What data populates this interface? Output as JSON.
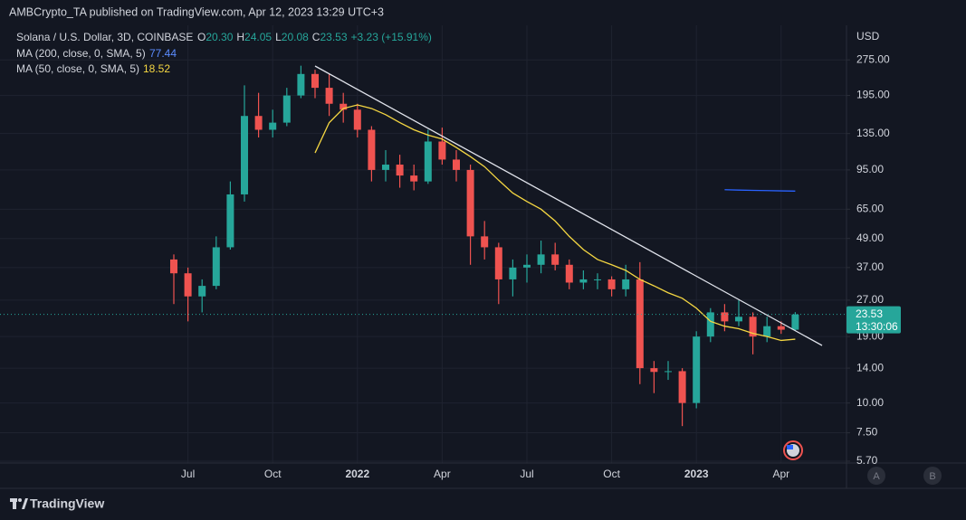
{
  "header": "AMBCrypto_TA published on TradingView.com, Apr 12, 2023 13:29 UTC+3",
  "footer": "TradingView",
  "chart_data": {
    "type": "candlestick",
    "symbol": "Solana / U.S. Dollar, 3D, COINBASE",
    "legend": {
      "open_label": "O",
      "open": "20.30",
      "high_label": "H",
      "high": "24.05",
      "low_label": "L",
      "low": "20.08",
      "close_label": "C",
      "close": "23.53",
      "change": "+3.23 (+15.91%)"
    },
    "currency": "USD",
    "log_scale": true,
    "grid": true,
    "up_color": "#26a69a",
    "down_color": "#ef5350",
    "candles": [
      {
        "open": 40,
        "high": 42,
        "low": 26,
        "close": 35
      },
      {
        "open": 35,
        "high": 37,
        "low": 22,
        "close": 28
      },
      {
        "open": 28,
        "high": 33,
        "low": 24,
        "close": 31
      },
      {
        "open": 31,
        "high": 50,
        "low": 30,
        "close": 45
      },
      {
        "open": 45,
        "high": 85,
        "low": 44,
        "close": 75
      },
      {
        "open": 75,
        "high": 215,
        "low": 70,
        "close": 160
      },
      {
        "open": 160,
        "high": 200,
        "low": 130,
        "close": 140
      },
      {
        "open": 140,
        "high": 170,
        "low": 130,
        "close": 150
      },
      {
        "open": 150,
        "high": 210,
        "low": 145,
        "close": 195
      },
      {
        "open": 195,
        "high": 260,
        "low": 190,
        "close": 240
      },
      {
        "open": 240,
        "high": 250,
        "low": 190,
        "close": 210
      },
      {
        "open": 210,
        "high": 240,
        "low": 160,
        "close": 180
      },
      {
        "open": 180,
        "high": 200,
        "low": 150,
        "close": 170
      },
      {
        "open": 170,
        "high": 180,
        "low": 130,
        "close": 140
      },
      {
        "open": 140,
        "high": 145,
        "low": 85,
        "close": 95
      },
      {
        "open": 95,
        "high": 115,
        "low": 85,
        "close": 100
      },
      {
        "open": 100,
        "high": 110,
        "low": 80,
        "close": 90
      },
      {
        "open": 90,
        "high": 100,
        "low": 78,
        "close": 85
      },
      {
        "open": 85,
        "high": 140,
        "low": 83,
        "close": 125
      },
      {
        "open": 125,
        "high": 143,
        "low": 100,
        "close": 105
      },
      {
        "open": 105,
        "high": 115,
        "low": 85,
        "close": 95
      },
      {
        "open": 95,
        "high": 100,
        "low": 38,
        "close": 50
      },
      {
        "open": 50,
        "high": 58,
        "low": 40,
        "close": 45
      },
      {
        "open": 45,
        "high": 47,
        "low": 26,
        "close": 33
      },
      {
        "open": 33,
        "high": 40,
        "low": 28,
        "close": 37
      },
      {
        "open": 37,
        "high": 42,
        "low": 32,
        "close": 38
      },
      {
        "open": 38,
        "high": 48,
        "low": 35,
        "close": 42
      },
      {
        "open": 42,
        "high": 47,
        "low": 36,
        "close": 38
      },
      {
        "open": 38,
        "high": 40,
        "low": 30,
        "close": 32
      },
      {
        "open": 32,
        "high": 36,
        "low": 30,
        "close": 33
      },
      {
        "open": 33,
        "high": 35,
        "low": 30,
        "close": 33
      },
      {
        "open": 33,
        "high": 34,
        "low": 28,
        "close": 30
      },
      {
        "open": 30,
        "high": 38,
        "low": 28,
        "close": 33
      },
      {
        "open": 33,
        "high": 39,
        "low": 12,
        "close": 14
      },
      {
        "open": 14,
        "high": 15,
        "low": 11,
        "close": 13.5
      },
      {
        "open": 13.5,
        "high": 15,
        "low": 12.5,
        "close": 13.6
      },
      {
        "open": 13.6,
        "high": 14,
        "low": 8,
        "close": 10
      },
      {
        "open": 10,
        "high": 20,
        "low": 9.5,
        "close": 19
      },
      {
        "open": 19,
        "high": 25,
        "low": 18,
        "close": 24
      },
      {
        "open": 24,
        "high": 26,
        "low": 20,
        "close": 22
      },
      {
        "open": 22,
        "high": 27,
        "low": 21,
        "close": 23
      },
      {
        "open": 23,
        "high": 24,
        "low": 16,
        "close": 19
      },
      {
        "open": 19,
        "high": 23,
        "low": 18,
        "close": 21
      },
      {
        "open": 21,
        "high": 22,
        "low": 19.5,
        "close": 20.3
      },
      {
        "open": 20.3,
        "high": 24.05,
        "low": 20.08,
        "close": 23.53
      }
    ],
    "series": [
      {
        "name": "MA (200, close, 0, SMA, 5)",
        "value_label": "77.44",
        "color": "#2962ff",
        "values": [
          null,
          null,
          null,
          null,
          null,
          null,
          null,
          null,
          null,
          null,
          null,
          null,
          null,
          null,
          null,
          null,
          null,
          null,
          null,
          null,
          null,
          null,
          null,
          null,
          null,
          null,
          null,
          null,
          null,
          null,
          null,
          null,
          null,
          null,
          null,
          null,
          null,
          null,
          null,
          78.5,
          78.2,
          78,
          77.8,
          77.6,
          77.44
        ]
      },
      {
        "name": "MA (50, close, 0, SMA, 5)",
        "value_label": "18.52",
        "color": "#f5d742",
        "values": [
          null,
          null,
          null,
          null,
          null,
          null,
          null,
          null,
          null,
          null,
          112,
          150,
          172,
          178,
          172,
          162,
          150,
          140,
          133,
          128,
          118,
          108,
          98,
          86,
          76,
          70,
          65,
          58,
          50,
          44,
          40,
          38,
          36,
          33,
          31,
          29,
          27.5,
          25,
          22,
          21,
          20.5,
          19.6,
          19,
          18.3,
          18.52
        ]
      }
    ],
    "last_label": {
      "price": "23.53",
      "countdown": "13:30:06"
    },
    "ylim": [
      5.6,
      384
    ],
    "yticks": [
      {
        "value": 275,
        "label": "275.00"
      },
      {
        "value": 195,
        "label": "195.00"
      },
      {
        "value": 135,
        "label": "135.00"
      },
      {
        "value": 95,
        "label": "95.00"
      },
      {
        "value": 65,
        "label": "65.00"
      },
      {
        "value": 49,
        "label": "49.00"
      },
      {
        "value": 37,
        "label": "37.00"
      },
      {
        "value": 27,
        "label": "27.00"
      },
      {
        "value": 19,
        "label": "19.00"
      },
      {
        "value": 14,
        "label": "14.00"
      },
      {
        "value": 10,
        "label": "10.00"
      },
      {
        "value": 7.5,
        "label": "7.50"
      },
      {
        "value": 5.7,
        "label": "5.70"
      }
    ],
    "xticks": [
      {
        "value": 1,
        "label": "Jul"
      },
      {
        "value": 7,
        "label": "Oct"
      },
      {
        "value": 13,
        "label": "2022"
      },
      {
        "value": 19,
        "label": "Apr"
      },
      {
        "value": 25,
        "label": "Jul"
      },
      {
        "value": 31,
        "label": "Oct"
      },
      {
        "value": 37,
        "label": "2023"
      },
      {
        "value": 43,
        "label": "Apr"
      }
    ],
    "buttons": [
      "A",
      "B"
    ]
  }
}
